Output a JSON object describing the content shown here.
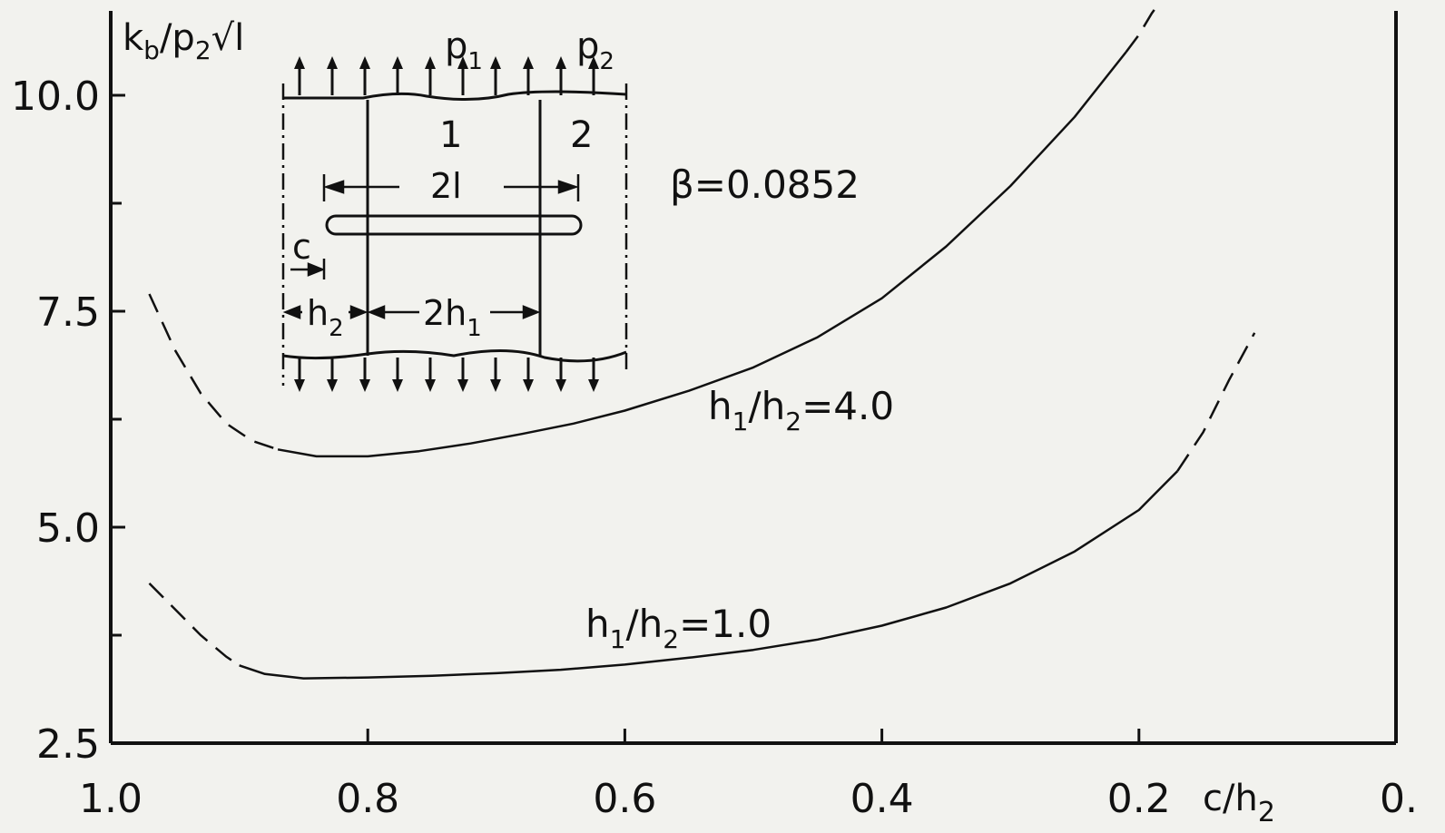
{
  "chart_data": {
    "type": "line",
    "xlabel": "c/h",
    "xlabel_sub": "2",
    "ylabel_parts": [
      "k",
      "b",
      "/p",
      "2",
      "√l"
    ],
    "xlim": [
      1.0,
      0.0
    ],
    "ylim": [
      2.5,
      10.5
    ],
    "x_ticks": [
      1.0,
      0.8,
      0.6,
      0.4,
      0.2,
      0.0
    ],
    "x_tick_labels": [
      "1.0",
      "0.8",
      "0.6",
      "0.4",
      "0.2",
      "0."
    ],
    "y_ticks": [
      2.5,
      5.0,
      7.5,
      10.0
    ],
    "y_tick_labels": [
      "2.5",
      "5.0",
      "7.5",
      "10.0"
    ],
    "y_minor_ticks": [
      3.75,
      6.25,
      8.75
    ],
    "grid": false,
    "annotation": "β=0.0852",
    "series": [
      {
        "label_parts": [
          "h",
          "1",
          "/h",
          "2",
          "=4.0"
        ],
        "solid": {
          "x": [
            0.87,
            0.84,
            0.8,
            0.76,
            0.72,
            0.68,
            0.64,
            0.6,
            0.55,
            0.5,
            0.45,
            0.4,
            0.35,
            0.3,
            0.25,
            0.21
          ],
          "y": [
            5.9,
            5.82,
            5.82,
            5.88,
            5.97,
            6.08,
            6.2,
            6.35,
            6.58,
            6.85,
            7.2,
            7.65,
            8.25,
            8.95,
            9.75,
            10.5
          ]
        },
        "dashed": [
          {
            "x": [
              0.97,
              0.95,
              0.93,
              0.91,
              0.89,
              0.87
            ],
            "y": [
              7.7,
              7.05,
              6.55,
              6.2,
              6.0,
              5.9
            ]
          },
          {
            "x": [
              0.21,
              0.2,
              0.19,
              0.185
            ],
            "y": [
              10.5,
              10.7,
              10.95,
              11.05
            ]
          }
        ]
      },
      {
        "label_parts": [
          "h",
          "1",
          "/h",
          "2",
          "=1.0"
        ],
        "solid": {
          "x": [
            0.9,
            0.88,
            0.85,
            0.8,
            0.75,
            0.7,
            0.65,
            0.6,
            0.55,
            0.5,
            0.45,
            0.4,
            0.35,
            0.3,
            0.25,
            0.2,
            0.17
          ],
          "y": [
            3.4,
            3.3,
            3.25,
            3.26,
            3.28,
            3.31,
            3.35,
            3.41,
            3.49,
            3.58,
            3.7,
            3.86,
            4.07,
            4.35,
            4.72,
            5.2,
            5.65
          ]
        },
        "dashed": [
          {
            "x": [
              0.97,
              0.95,
              0.93,
              0.91,
              0.9
            ],
            "y": [
              4.35,
              4.05,
              3.75,
              3.5,
              3.4
            ]
          },
          {
            "x": [
              0.17,
              0.15,
              0.13,
              0.11
            ],
            "y": [
              5.65,
              6.1,
              6.7,
              7.25
            ]
          }
        ]
      }
    ],
    "inset": {
      "labels": [
        "p",
        "1",
        "p",
        "2",
        "1",
        "2",
        "2l",
        "c",
        "h",
        "2",
        "2h",
        "1"
      ]
    }
  }
}
